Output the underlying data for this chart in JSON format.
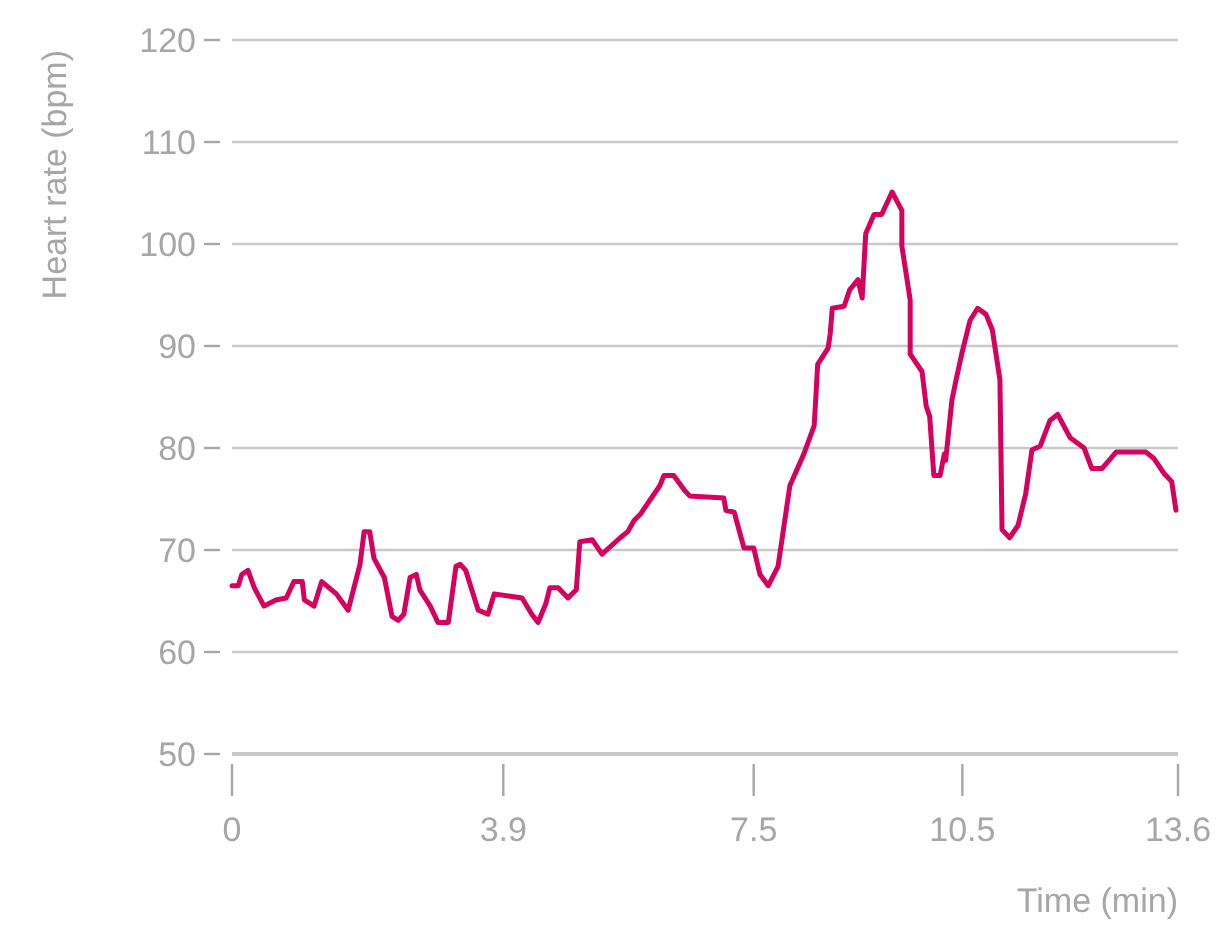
{
  "chart_data": {
    "type": "line",
    "xlabel": "Time (min)",
    "ylabel": "Heart rate (bpm)",
    "xlim": [
      0,
      13.6
    ],
    "xticks": [
      0,
      3.9,
      7.5,
      10.5,
      13.6
    ],
    "ylim": [
      50,
      120
    ],
    "yticks": [
      50,
      60,
      70,
      80,
      90,
      100,
      110,
      120
    ],
    "grid": "y",
    "line_style": "solid",
    "marker": "none",
    "series": [
      {
        "color": "#d6005f",
        "x": [
          0,
          0.09,
          0.14,
          0.23,
          0.32,
          0.46,
          0.63,
          0.78,
          0.89,
          1.01,
          1.04,
          1.18,
          1.29,
          1.5,
          1.67,
          1.84,
          1.9,
          1.98,
          2.04,
          2.19,
          2.3,
          2.39,
          2.47,
          2.56,
          2.65,
          2.7,
          2.85,
          2.96,
          3.11,
          3.22,
          3.28,
          3.36,
          3.54,
          3.68,
          3.77,
          4.17,
          4.31,
          4.4,
          4.51,
          4.57,
          4.69,
          4.83,
          4.95,
          5,
          5.18,
          5.32,
          5.58,
          5.69,
          5.78,
          5.87,
          6.01,
          6.15,
          6.21,
          6.35,
          6.5,
          6.58,
          7.07,
          7.1,
          7.22,
          7.36,
          7.5,
          7.59,
          7.71,
          7.85,
          8.02,
          8.22,
          8.37,
          8.42,
          8.57,
          8.6,
          8.63,
          8.8,
          8.88,
          9,
          9.06,
          9.11,
          9.23,
          9.34,
          9.49,
          9.63,
          9.63,
          9.75,
          9.75,
          9.92,
          9.98,
          10.03,
          10.09,
          10.18,
          10.24,
          10.26,
          10.35,
          10.41,
          10.49,
          10.61,
          10.72,
          10.84,
          10.93,
          11.04,
          11.07,
          11.18,
          11.3,
          11.41,
          11.5,
          11.62,
          11.76,
          11.87,
          12.05,
          12.25,
          12.36,
          12.51,
          12.71,
          13.14,
          13.25,
          13.4,
          13.51,
          13.57
        ],
        "values": [
          66.5,
          66.5,
          67.6,
          68,
          66.3,
          64.5,
          65.1,
          65.3,
          66.9,
          66.9,
          65.1,
          64.5,
          66.9,
          65.7,
          64.1,
          68.6,
          71.8,
          71.8,
          69.2,
          67.3,
          63.5,
          63.1,
          63.7,
          67.3,
          67.6,
          66.1,
          64.5,
          62.9,
          62.9,
          68.4,
          68.6,
          68,
          64.1,
          63.7,
          65.7,
          65.3,
          63.7,
          62.9,
          64.7,
          66.3,
          66.3,
          65.3,
          66.1,
          70.8,
          71,
          69.6,
          71.2,
          71.8,
          72.9,
          73.5,
          74.9,
          76.3,
          77.3,
          77.3,
          75.9,
          75.3,
          75.1,
          73.9,
          73.7,
          70.2,
          70.2,
          67.6,
          66.5,
          68.4,
          76.3,
          79.4,
          82.2,
          88.2,
          89.8,
          91.2,
          93.7,
          93.9,
          95.5,
          96.5,
          94.7,
          101,
          102.9,
          102.9,
          105.1,
          103.3,
          99.8,
          94.5,
          89.2,
          87.5,
          84.1,
          83.1,
          77.3,
          77.3,
          79.4,
          78.8,
          84.7,
          86.7,
          89.2,
          92.5,
          93.7,
          93.1,
          91.6,
          86.7,
          72,
          71.2,
          72.4,
          75.5,
          79.8,
          80.2,
          82.7,
          83.3,
          81,
          80,
          78,
          78,
          79.6,
          79.6,
          79,
          77.5,
          76.7,
          73.9
        ]
      }
    ]
  }
}
